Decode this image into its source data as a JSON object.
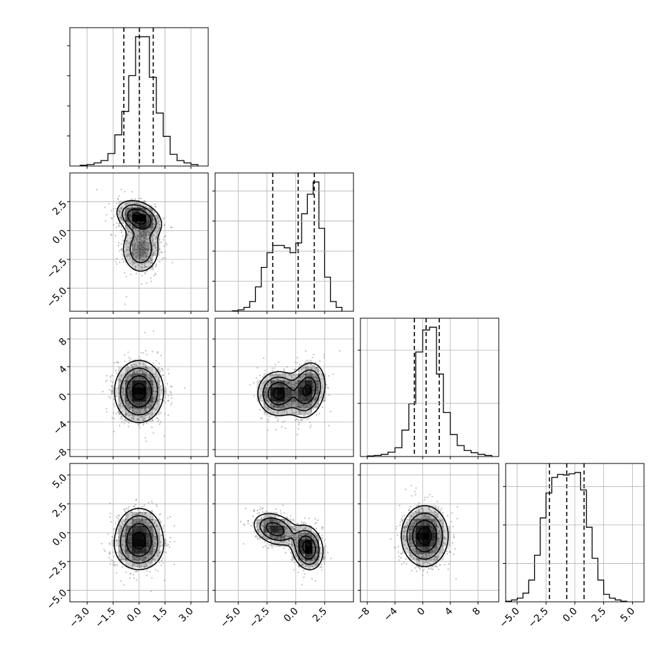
{
  "chart_data": {
    "type": "corner",
    "parameters": [
      {
        "range": [
          -4,
          4
        ],
        "ticks": [
          -3.0,
          -1.5,
          0.0,
          1.5,
          3.0
        ],
        "tick_labels": [
          "−3.0",
          "−1.5",
          "0.0",
          "1.5",
          "3.0"
        ],
        "quantiles": [
          -0.88,
          0.02,
          0.82
        ],
        "histogram": {
          "bin_edges": [
            -3.4,
            -3.0,
            -2.6,
            -2.2,
            -1.8,
            -1.4,
            -1.0,
            -0.6,
            -0.2,
            0.2,
            0.6,
            1.0,
            1.4,
            1.8,
            2.2,
            2.6,
            3.0,
            3.4
          ],
          "counts": [
            1,
            2,
            4,
            7,
            16,
            40,
            70,
            116,
            166,
            166,
            114,
            68,
            38,
            15,
            7,
            4,
            2
          ]
        }
      },
      {
        "range": [
          -7,
          5
        ],
        "ticks": [
          -5.0,
          -2.5,
          0.0,
          2.5
        ],
        "tick_labels": [
          "−5.0",
          "−2.5",
          "0.0",
          "2.5"
        ],
        "quantiles": [
          -2.0,
          0.2,
          1.6
        ],
        "histogram": {
          "bin_edges": [
            -5.5,
            -5.0,
            -4.5,
            -4.0,
            -3.5,
            -3.0,
            -2.5,
            -2.0,
            -1.5,
            -1.0,
            -0.5,
            0.0,
            0.5,
            1.0,
            1.5,
            2.0,
            2.5,
            3.0,
            3.5,
            4.0
          ],
          "counts": [
            1,
            3,
            8,
            20,
            50,
            90,
            120,
            135,
            135,
            130,
            120,
            140,
            200,
            240,
            265,
            170,
            70,
            20,
            8
          ]
        }
      },
      {
        "range": [
          -9,
          11
        ],
        "ticks": [
          -8,
          -4,
          0,
          4,
          8
        ],
        "tick_labels": [
          "−8",
          "−4",
          "0",
          "4",
          "8"
        ],
        "quantiles": [
          -1.2,
          0.5,
          2.4
        ],
        "histogram": {
          "bin_edges": [
            -8,
            -7,
            -6,
            -5,
            -4,
            -3,
            -2,
            -1,
            0,
            1,
            2,
            3,
            4,
            5,
            6,
            7,
            8,
            9,
            10
          ],
          "counts": [
            1,
            2,
            4,
            8,
            16,
            48,
            96,
            190,
            230,
            235,
            150,
            80,
            40,
            20,
            11,
            7,
            4,
            2
          ]
        }
      },
      {
        "range": [
          -6,
          6
        ],
        "ticks": [
          -5.0,
          -2.5,
          0.0,
          2.5,
          5.0
        ],
        "tick_labels": [
          "−5.0",
          "−2.5",
          "0.0",
          "2.5",
          "5.0"
        ],
        "quantiles": [
          -2.2,
          -0.7,
          0.8
        ],
        "histogram": {
          "bin_edges": [
            -6.0,
            -5.5,
            -5.0,
            -4.5,
            -4.0,
            -3.5,
            -3.0,
            -2.5,
            -2.0,
            -1.5,
            -1.0,
            -0.5,
            0.0,
            0.5,
            1.0,
            1.5,
            2.0,
            2.5,
            3.0,
            3.5,
            4.0,
            4.5
          ],
          "counts": [
            1,
            3,
            6,
            14,
            35,
            75,
            135,
            175,
            200,
            205,
            204,
            206,
            208,
            180,
            120,
            70,
            35,
            12,
            6,
            3,
            1
          ]
        }
      }
    ],
    "joint": [
      {
        "x_param": 0,
        "y_param": 1,
        "components": [
          {
            "weight": 0.55,
            "mean": [
              0.0,
              1.1
            ],
            "cov": [
              [
                0.4,
                -0.15
              ],
              [
                -0.15,
                0.55
              ]
            ]
          },
          {
            "weight": 0.45,
            "mean": [
              0.1,
              -1.6
            ],
            "cov": [
              [
                0.35,
                0.0
              ],
              [
                0.0,
                1.3
              ]
            ]
          }
        ]
      },
      {
        "x_param": 0,
        "y_param": 2,
        "components": [
          {
            "weight": 1.0,
            "mean": [
              0.0,
              0.4
            ],
            "cov": [
              [
                0.5,
                0.0
              ],
              [
                0.0,
                5.0
              ]
            ]
          }
        ]
      },
      {
        "x_param": 1,
        "y_param": 2,
        "components": [
          {
            "weight": 0.5,
            "mean": [
              -1.5,
              0.1
            ],
            "cov": [
              [
                0.8,
                0.0
              ],
              [
                0.0,
                2.5
              ]
            ]
          },
          {
            "weight": 0.5,
            "mean": [
              1.0,
              0.6
            ],
            "cov": [
              [
                0.6,
                0.3
              ],
              [
                0.3,
                4.0
              ]
            ]
          }
        ]
      },
      {
        "x_param": 0,
        "y_param": 3,
        "components": [
          {
            "weight": 0.45,
            "mean": [
              0.0,
              0.2
            ],
            "cov": [
              [
                0.45,
                0.0
              ],
              [
                0.0,
                1.2
              ]
            ]
          },
          {
            "weight": 0.55,
            "mean": [
              0.0,
              -1.3
            ],
            "cov": [
              [
                0.55,
                0.0
              ],
              [
                0.0,
                1.1
              ]
            ]
          }
        ]
      },
      {
        "x_param": 1,
        "y_param": 3,
        "components": [
          {
            "weight": 0.45,
            "mean": [
              -1.8,
              0.3
            ],
            "cov": [
              [
                0.9,
                -0.2
              ],
              [
                -0.2,
                0.5
              ]
            ]
          },
          {
            "weight": 0.55,
            "mean": [
              1.0,
              -1.3
            ],
            "cov": [
              [
                0.45,
                -0.1
              ],
              [
                -0.1,
                0.9
              ]
            ]
          }
        ]
      },
      {
        "x_param": 2,
        "y_param": 3,
        "components": [
          {
            "weight": 1.0,
            "mean": [
              0.3,
              -0.3
            ],
            "cov": [
              [
                2.8,
                0.0
              ],
              [
                0.0,
                1.7
              ]
            ]
          }
        ]
      }
    ],
    "contour_levels": [
      0.5,
      1.0,
      1.5,
      2.0
    ],
    "n_samples_shown": 900,
    "grid": true
  },
  "colors": {
    "lines": "#000000",
    "grid": "#b0b0b0",
    "points": "#8c8c8c",
    "density": "#000000"
  }
}
